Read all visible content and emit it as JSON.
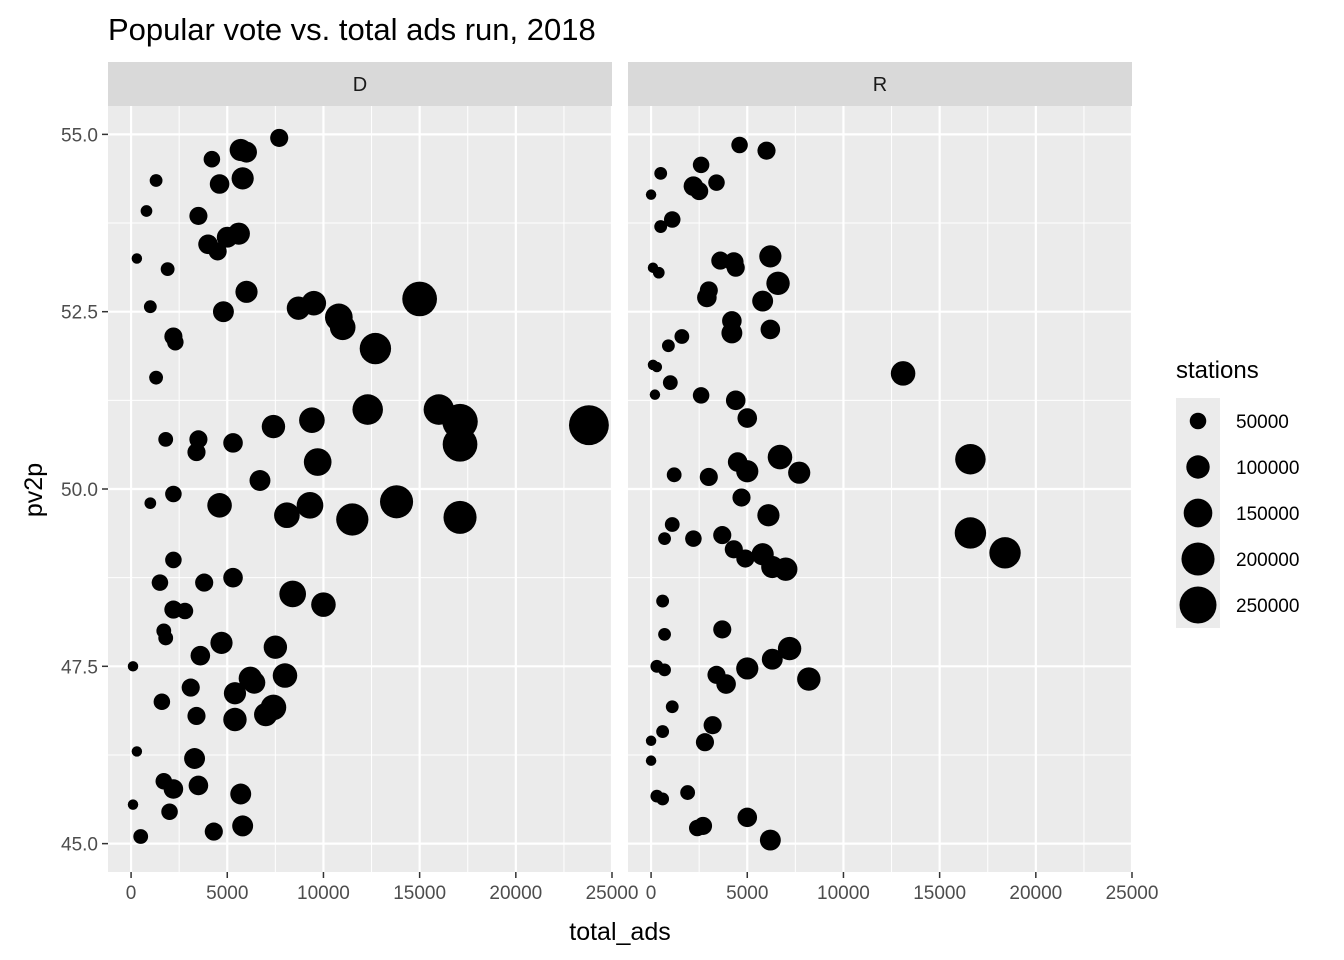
{
  "chart_data": {
    "type": "scatter",
    "title": "Popular vote vs. total ads run, 2018",
    "xlabel": "total_ads",
    "ylabel": "pv2p",
    "xlim": [
      -1200,
      25000
    ],
    "ylim": [
      44.6,
      55.4
    ],
    "x_ticks": [
      0,
      5000,
      10000,
      15000,
      20000,
      25000
    ],
    "x_tick_labels": [
      "0",
      "5000",
      "10000",
      "15000",
      "20000",
      "25000"
    ],
    "y_ticks": [
      45.0,
      47.5,
      50.0,
      52.5,
      55.0
    ],
    "y_tick_labels": [
      "45.0",
      "47.5",
      "50.0",
      "52.5",
      "55.0"
    ],
    "grid": true,
    "size_legend": {
      "title": "stations",
      "position": "right",
      "entries": [
        {
          "label": "50000",
          "value": 50000
        },
        {
          "label": "100000",
          "value": 100000
        },
        {
          "label": "150000",
          "value": 150000
        },
        {
          "label": "200000",
          "value": 200000
        },
        {
          "label": "250000",
          "value": 250000
        }
      ]
    },
    "facets": [
      {
        "label": "D",
        "points": [
          [
            7700,
            54.95,
            60000
          ],
          [
            5700,
            54.78,
            90000
          ],
          [
            6000,
            54.75,
            80000
          ],
          [
            4200,
            54.65,
            50000
          ],
          [
            1300,
            54.35,
            30000
          ],
          [
            5800,
            54.38,
            90000
          ],
          [
            4600,
            54.3,
            70000
          ],
          [
            800,
            53.92,
            25000
          ],
          [
            3500,
            53.85,
            60000
          ],
          [
            5600,
            53.6,
            90000
          ],
          [
            5000,
            53.55,
            80000
          ],
          [
            4000,
            53.45,
            70000
          ],
          [
            4500,
            53.35,
            60000
          ],
          [
            300,
            53.25,
            20000
          ],
          [
            1900,
            53.1,
            35000
          ],
          [
            6000,
            52.78,
            90000
          ],
          [
            1000,
            52.57,
            30000
          ],
          [
            4800,
            52.5,
            80000
          ],
          [
            8700,
            52.55,
            100000
          ],
          [
            9500,
            52.62,
            110000
          ],
          [
            10800,
            52.42,
            140000
          ],
          [
            15000,
            52.68,
            220000
          ],
          [
            11000,
            52.28,
            120000
          ],
          [
            2200,
            52.15,
            60000
          ],
          [
            2300,
            52.07,
            50000
          ],
          [
            12700,
            51.98,
            180000
          ],
          [
            1300,
            51.57,
            35000
          ],
          [
            12300,
            51.12,
            170000
          ],
          [
            16000,
            51.12,
            170000
          ],
          [
            17100,
            50.95,
            230000
          ],
          [
            9400,
            50.97,
            120000
          ],
          [
            7400,
            50.88,
            100000
          ],
          [
            23800,
            50.9,
            290000
          ],
          [
            1800,
            50.7,
            40000
          ],
          [
            3500,
            50.7,
            60000
          ],
          [
            5300,
            50.65,
            70000
          ],
          [
            17100,
            50.63,
            220000
          ],
          [
            3400,
            50.52,
            60000
          ],
          [
            9700,
            50.38,
            140000
          ],
          [
            6700,
            50.12,
            80000
          ],
          [
            1000,
            49.8,
            25000
          ],
          [
            2200,
            49.93,
            50000
          ],
          [
            4600,
            49.77,
            110000
          ],
          [
            8100,
            49.63,
            120000
          ],
          [
            9300,
            49.77,
            130000
          ],
          [
            13800,
            49.82,
            200000
          ],
          [
            11500,
            49.57,
            190000
          ],
          [
            17100,
            49.6,
            200000
          ],
          [
            2200,
            49.0,
            50000
          ],
          [
            5300,
            48.75,
            70000
          ],
          [
            1500,
            48.68,
            50000
          ],
          [
            3800,
            48.68,
            60000
          ],
          [
            8400,
            48.52,
            130000
          ],
          [
            2200,
            48.3,
            60000
          ],
          [
            2800,
            48.28,
            50000
          ],
          [
            10000,
            48.37,
            110000
          ],
          [
            1700,
            48.0,
            40000
          ],
          [
            1800,
            47.9,
            40000
          ],
          [
            4700,
            47.83,
            90000
          ],
          [
            3600,
            47.65,
            70000
          ],
          [
            7500,
            47.77,
            100000
          ],
          [
            100,
            47.5,
            20000
          ],
          [
            8000,
            47.37,
            110000
          ],
          [
            6200,
            47.33,
            100000
          ],
          [
            6400,
            47.27,
            90000
          ],
          [
            3100,
            47.2,
            60000
          ],
          [
            5400,
            47.12,
            90000
          ],
          [
            1600,
            47.0,
            50000
          ],
          [
            7400,
            46.92,
            120000
          ],
          [
            7000,
            46.82,
            100000
          ],
          [
            3400,
            46.8,
            60000
          ],
          [
            5400,
            46.75,
            100000
          ],
          [
            300,
            46.3,
            20000
          ],
          [
            3300,
            46.2,
            80000
          ],
          [
            1700,
            45.88,
            50000
          ],
          [
            3500,
            45.82,
            70000
          ],
          [
            2200,
            45.77,
            70000
          ],
          [
            5700,
            45.7,
            80000
          ],
          [
            100,
            45.55,
            20000
          ],
          [
            2000,
            45.45,
            50000
          ],
          [
            5800,
            45.25,
            80000
          ],
          [
            4300,
            45.17,
            60000
          ],
          [
            500,
            45.1,
            40000
          ]
        ]
      },
      {
        "label": "R",
        "points": [
          [
            4600,
            54.85,
            50000
          ],
          [
            6000,
            54.77,
            60000
          ],
          [
            2600,
            54.57,
            50000
          ],
          [
            500,
            54.45,
            30000
          ],
          [
            2200,
            54.27,
            70000
          ],
          [
            3400,
            54.32,
            50000
          ],
          [
            2500,
            54.2,
            60000
          ],
          [
            0,
            54.15,
            20000
          ],
          [
            1100,
            53.8,
            50000
          ],
          [
            500,
            53.7,
            30000
          ],
          [
            6200,
            53.28,
            90000
          ],
          [
            3600,
            53.22,
            60000
          ],
          [
            4300,
            53.2,
            70000
          ],
          [
            4400,
            53.12,
            60000
          ],
          [
            100,
            53.12,
            20000
          ],
          [
            400,
            53.05,
            25000
          ],
          [
            6600,
            52.9,
            100000
          ],
          [
            3000,
            52.8,
            60000
          ],
          [
            2900,
            52.7,
            70000
          ],
          [
            5800,
            52.65,
            80000
          ],
          [
            4200,
            52.37,
            70000
          ],
          [
            6200,
            52.25,
            70000
          ],
          [
            4200,
            52.2,
            80000
          ],
          [
            1600,
            52.15,
            40000
          ],
          [
            900,
            52.02,
            30000
          ],
          [
            100,
            51.75,
            20000
          ],
          [
            300,
            51.72,
            20000
          ],
          [
            13100,
            51.63,
            110000
          ],
          [
            1000,
            51.5,
            40000
          ],
          [
            200,
            51.33,
            20000
          ],
          [
            2600,
            51.32,
            50000
          ],
          [
            4400,
            51.25,
            70000
          ],
          [
            5000,
            51.0,
            70000
          ],
          [
            6700,
            50.45,
            110000
          ],
          [
            4500,
            50.38,
            70000
          ],
          [
            16600,
            50.42,
            170000
          ],
          [
            5000,
            50.25,
            90000
          ],
          [
            7700,
            50.23,
            90000
          ],
          [
            1200,
            50.2,
            40000
          ],
          [
            3000,
            50.17,
            60000
          ],
          [
            4700,
            49.88,
            60000
          ],
          [
            6100,
            49.63,
            90000
          ],
          [
            1100,
            49.5,
            40000
          ],
          [
            16600,
            49.38,
            180000
          ],
          [
            700,
            49.3,
            30000
          ],
          [
            2200,
            49.3,
            50000
          ],
          [
            3700,
            49.35,
            60000
          ],
          [
            4300,
            49.15,
            60000
          ],
          [
            5800,
            49.08,
            90000
          ],
          [
            18400,
            49.1,
            180000
          ],
          [
            4900,
            49.02,
            60000
          ],
          [
            6300,
            48.9,
            90000
          ],
          [
            7000,
            48.87,
            100000
          ],
          [
            600,
            48.42,
            30000
          ],
          [
            3700,
            48.02,
            60000
          ],
          [
            700,
            47.95,
            30000
          ],
          [
            300,
            47.5,
            30000
          ],
          [
            700,
            47.45,
            30000
          ],
          [
            6300,
            47.6,
            80000
          ],
          [
            7200,
            47.75,
            100000
          ],
          [
            3400,
            47.38,
            60000
          ],
          [
            5000,
            47.47,
            90000
          ],
          [
            8200,
            47.32,
            100000
          ],
          [
            3900,
            47.25,
            70000
          ],
          [
            1100,
            46.93,
            30000
          ],
          [
            3200,
            46.67,
            60000
          ],
          [
            600,
            46.58,
            30000
          ],
          [
            2800,
            46.43,
            60000
          ],
          [
            0,
            46.45,
            20000
          ],
          [
            0,
            46.17,
            20000
          ],
          [
            1900,
            45.72,
            40000
          ],
          [
            300,
            45.67,
            30000
          ],
          [
            600,
            45.63,
            30000
          ],
          [
            5000,
            45.37,
            70000
          ],
          [
            2700,
            45.25,
            60000
          ],
          [
            2400,
            45.22,
            50000
          ],
          [
            6200,
            45.05,
            80000
          ]
        ]
      }
    ]
  }
}
